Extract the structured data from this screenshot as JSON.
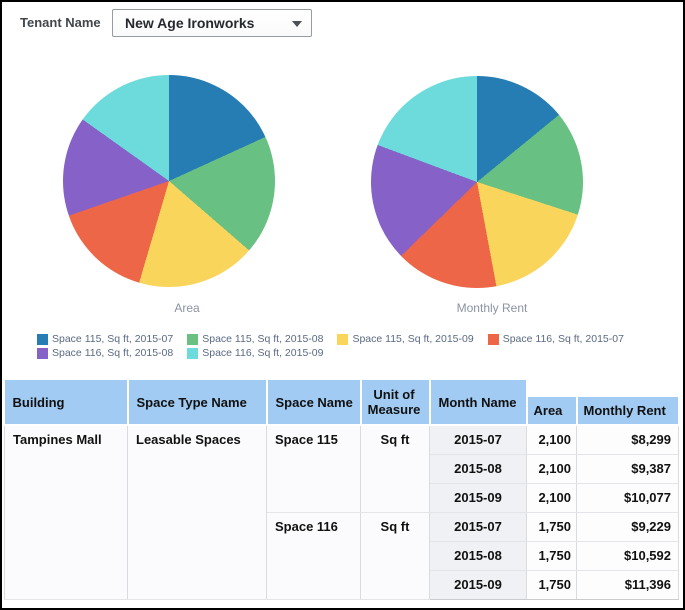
{
  "filter": {
    "label": "Tenant Name",
    "value": "New Age Ironworks"
  },
  "palette": [
    "#267db3",
    "#68c182",
    "#fad55c",
    "#ed6647",
    "#8561c8",
    "#6ddbdb"
  ],
  "legend": {
    "items": [
      {
        "label": "Space 115, Sq ft, 2015-07",
        "color": "#267db3"
      },
      {
        "label": "Space 115, Sq ft, 2015-08",
        "color": "#68c182"
      },
      {
        "label": "Space 115, Sq ft, 2015-09",
        "color": "#fad55c"
      },
      {
        "label": "Space 116, Sq ft, 2015-07",
        "color": "#ed6647"
      },
      {
        "label": "Space 116, Sq ft, 2015-08",
        "color": "#8561c8"
      },
      {
        "label": "Space 116, Sq ft, 2015-09",
        "color": "#6ddbdb"
      }
    ]
  },
  "chart_data": [
    {
      "type": "pie",
      "title": "Area",
      "labels": [
        "Space 115, Sq ft, 2015-07",
        "Space 115, Sq ft, 2015-08",
        "Space 115, Sq ft, 2015-09",
        "Space 116, Sq ft, 2015-07",
        "Space 116, Sq ft, 2015-08",
        "Space 116, Sq ft, 2015-09"
      ],
      "values": [
        2100,
        2100,
        2100,
        1750,
        1750,
        1750
      ],
      "colors": [
        "#267db3",
        "#68c182",
        "#fad55c",
        "#ed6647",
        "#8561c8",
        "#6ddbdb"
      ],
      "legend_position": "bottom"
    },
    {
      "type": "pie",
      "title": "Monthly Rent",
      "labels": [
        "Space 115, Sq ft, 2015-07",
        "Space 115, Sq ft, 2015-08",
        "Space 115, Sq ft, 2015-09",
        "Space 116, Sq ft, 2015-07",
        "Space 116, Sq ft, 2015-08",
        "Space 116, Sq ft, 2015-09"
      ],
      "values": [
        8299,
        9387,
        10077,
        9229,
        10592,
        11396
      ],
      "colors": [
        "#267db3",
        "#68c182",
        "#fad55c",
        "#ed6647",
        "#8561c8",
        "#6ddbdb"
      ],
      "legend_position": "bottom"
    }
  ],
  "charts": {
    "left_caption": "Area",
    "right_caption": "Monthly Rent"
  },
  "table": {
    "headers": [
      "Building",
      "Space Type Name",
      "Space Name",
      "Unit of Measure",
      "Month Name",
      "Area",
      "Monthly Rent"
    ],
    "building": "Tampines Mall",
    "space_type": "Leasable Spaces",
    "groups": [
      {
        "space_name": "Space 115",
        "unit": "Sq ft"
      },
      {
        "space_name": "Space 116",
        "unit": "Sq ft"
      }
    ],
    "rows": [
      {
        "month": "2015-07",
        "area": "2,100",
        "rent": "$8,299"
      },
      {
        "month": "2015-08",
        "area": "2,100",
        "rent": "$9,387"
      },
      {
        "month": "2015-09",
        "area": "2,100",
        "rent": "$10,077"
      },
      {
        "month": "2015-07",
        "area": "1,750",
        "rent": "$9,229"
      },
      {
        "month": "2015-08",
        "area": "1,750",
        "rent": "$10,592"
      },
      {
        "month": "2015-09",
        "area": "1,750",
        "rent": "$11,396"
      }
    ]
  },
  "colors": {
    "header_bg": "#a1cbf2",
    "month_col_bg": "#eff1f4",
    "caption": "#8b93a4",
    "legend_text": "#5a6a83"
  }
}
